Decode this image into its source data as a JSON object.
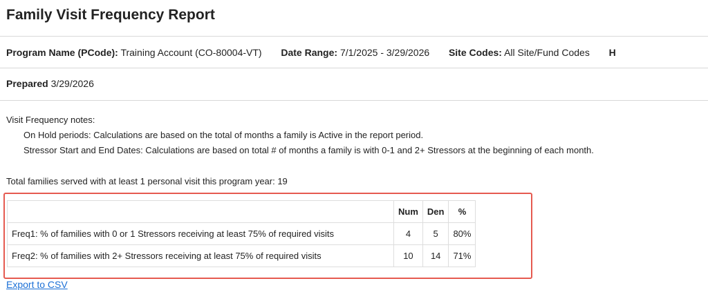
{
  "header": {
    "title": "Family Visit Frequency Report",
    "fields": [
      {
        "label": "Program Name (PCode):",
        "value": "Training Account (CO-80004-VT)"
      },
      {
        "label": "Date Range:",
        "value": "7/1/2025 - 3/29/2026"
      },
      {
        "label": "Site Codes:",
        "value": "All Site/Fund Codes"
      },
      {
        "label": "H"
      }
    ],
    "prepared": {
      "label": "Prepared",
      "value": "3/29/2026"
    }
  },
  "notes": {
    "heading": "Visit Frequency notes:",
    "items": [
      "On Hold periods: Calculations are based on the total of months a family is Active in the report period.",
      "Stressor Start and End Dates: Calculations are based on total # of months a family is with 0-1 and 2+ Stressors at the beginning of each month."
    ]
  },
  "total": "Total families served with at least 1 personal visit this program year: 19",
  "table": {
    "columns": [
      "Num",
      "Den",
      "%"
    ],
    "rows": [
      [
        "Freq1: % of families with 0 or 1 Stressors receiving at least 75% of required visits",
        "4",
        "5",
        "80%"
      ],
      [
        "Freq2: % of families with 2+ Stressors receiving at least 75% of required visits",
        "10",
        "14",
        "71%"
      ]
    ]
  },
  "export_link": "Export to CSV"
}
